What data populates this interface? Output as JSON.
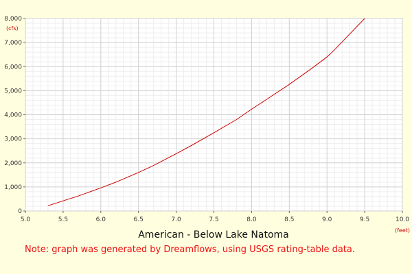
{
  "chart_data": {
    "type": "line",
    "xlabel": "American - Below Lake Natoma",
    "x_unit": "(feet)",
    "y_unit": "(cfs)",
    "xlim": [
      5.0,
      10.0
    ],
    "ylim": [
      0,
      8000
    ],
    "x_ticks": [
      5.0,
      5.5,
      6.0,
      6.5,
      7.0,
      7.5,
      8.0,
      8.5,
      9.0,
      9.5,
      10.0
    ],
    "y_ticks": [
      0,
      1000,
      2000,
      3000,
      4000,
      5000,
      6000,
      7000,
      8000
    ],
    "x_tick_labels": [
      "5.0",
      "5.5",
      "6.0",
      "6.5",
      "7.0",
      "7.5",
      "8.0",
      "8.5",
      "9.0",
      "9.5",
      "10.0"
    ],
    "y_tick_labels": [
      "0",
      "1,000",
      "2,000",
      "3,000",
      "4,000",
      "5,000",
      "6,000",
      "7,000",
      "8,000"
    ],
    "grid": true,
    "series": [
      {
        "color": "#cc0000",
        "x": [
          5.3,
          5.5,
          5.7,
          6.0,
          6.2,
          6.5,
          6.7,
          7.0,
          7.2,
          7.5,
          7.8,
          8.0,
          8.2,
          8.5,
          8.8,
          9.0,
          9.1,
          9.3,
          9.5
        ],
        "y": [
          220,
          420,
          620,
          960,
          1200,
          1600,
          1890,
          2380,
          2720,
          3250,
          3800,
          4230,
          4640,
          5260,
          5930,
          6400,
          6700,
          7350,
          8000
        ]
      }
    ]
  },
  "note": "Note: graph was generated by Dreamflows, using USGS rating-table data."
}
